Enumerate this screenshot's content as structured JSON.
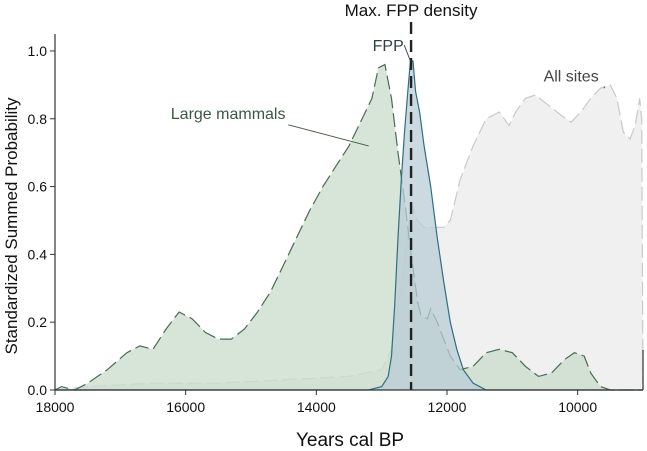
{
  "chart_data": {
    "type": "area",
    "xlabel": "Years cal BP",
    "ylabel": "Standardized Summed Probability",
    "xlim": [
      18000,
      9000
    ],
    "ylim": [
      0,
      1.05
    ],
    "x_reversed": true,
    "xticks": [
      18000,
      16000,
      14000,
      12000,
      10000
    ],
    "xtick_labels": [
      "18000",
      "16000",
      "14000",
      "12000",
      "10000"
    ],
    "yticks": [
      0,
      0.2,
      0.4,
      0.6,
      0.8,
      1.0
    ],
    "ytick_labels": [
      "0.0",
      "0.2",
      "0.4",
      "0.6",
      "0.8",
      "1.0"
    ],
    "grid": false,
    "reference_line": {
      "x": 12550,
      "label": "Max. FPP density"
    },
    "series": [
      {
        "name": "All sites",
        "color": "#c9c9c9",
        "fill": "#ebebeb",
        "line_style": "dashed",
        "points": [
          [
            18000,
            0.0
          ],
          [
            17500,
            0.01
          ],
          [
            16500,
            0.02
          ],
          [
            15500,
            0.02
          ],
          [
            14500,
            0.03
          ],
          [
            13500,
            0.04
          ],
          [
            13000,
            0.06
          ],
          [
            12850,
            0.12
          ],
          [
            12750,
            0.25
          ],
          [
            12650,
            0.38
          ],
          [
            12550,
            0.55
          ],
          [
            12450,
            0.5
          ],
          [
            12350,
            0.48
          ],
          [
            12200,
            0.48
          ],
          [
            12050,
            0.48
          ],
          [
            11950,
            0.5
          ],
          [
            11800,
            0.62
          ],
          [
            11600,
            0.72
          ],
          [
            11400,
            0.8
          ],
          [
            11200,
            0.82
          ],
          [
            11050,
            0.78
          ],
          [
            10950,
            0.82
          ],
          [
            10800,
            0.86
          ],
          [
            10650,
            0.87
          ],
          [
            10450,
            0.84
          ],
          [
            10250,
            0.81
          ],
          [
            10100,
            0.79
          ],
          [
            9950,
            0.82
          ],
          [
            9800,
            0.86
          ],
          [
            9650,
            0.89
          ],
          [
            9500,
            0.9
          ],
          [
            9400,
            0.86
          ],
          [
            9300,
            0.76
          ],
          [
            9200,
            0.74
          ],
          [
            9120,
            0.78
          ],
          [
            9050,
            0.86
          ],
          [
            9020,
            0.8
          ],
          [
            9000,
            0.0
          ]
        ]
      },
      {
        "name": "Large mammals",
        "color": "#4a6a55",
        "fill": "#c9dccb",
        "line_style": "dashed",
        "points": [
          [
            18000,
            0.0
          ],
          [
            17900,
            0.01
          ],
          [
            17700,
            0.0
          ],
          [
            17500,
            0.02
          ],
          [
            17200,
            0.06
          ],
          [
            16900,
            0.11
          ],
          [
            16700,
            0.13
          ],
          [
            16500,
            0.12
          ],
          [
            16300,
            0.18
          ],
          [
            16100,
            0.23
          ],
          [
            15900,
            0.21
          ],
          [
            15700,
            0.17
          ],
          [
            15500,
            0.15
          ],
          [
            15300,
            0.15
          ],
          [
            15100,
            0.18
          ],
          [
            14900,
            0.23
          ],
          [
            14700,
            0.29
          ],
          [
            14500,
            0.37
          ],
          [
            14300,
            0.45
          ],
          [
            14100,
            0.53
          ],
          [
            13900,
            0.6
          ],
          [
            13700,
            0.66
          ],
          [
            13500,
            0.72
          ],
          [
            13300,
            0.8
          ],
          [
            13150,
            0.86
          ],
          [
            13050,
            0.95
          ],
          [
            12950,
            0.96
          ],
          [
            12850,
            0.86
          ],
          [
            12750,
            0.7
          ],
          [
            12650,
            0.56
          ],
          [
            12550,
            0.4
          ],
          [
            12450,
            0.26
          ],
          [
            12400,
            0.22
          ],
          [
            12300,
            0.21
          ],
          [
            12250,
            0.24
          ],
          [
            12150,
            0.2
          ],
          [
            12050,
            0.15
          ],
          [
            11950,
            0.1
          ],
          [
            11800,
            0.06
          ],
          [
            11600,
            0.07
          ],
          [
            11400,
            0.11
          ],
          [
            11200,
            0.12
          ],
          [
            11000,
            0.11
          ],
          [
            10800,
            0.07
          ],
          [
            10600,
            0.04
          ],
          [
            10400,
            0.05
          ],
          [
            10200,
            0.09
          ],
          [
            10050,
            0.11
          ],
          [
            9900,
            0.1
          ],
          [
            9800,
            0.05
          ],
          [
            9650,
            0.01
          ],
          [
            9500,
            0.0
          ],
          [
            9000,
            0.0
          ]
        ]
      },
      {
        "name": "FPP",
        "color": "#2f6f80",
        "fill": "#b9ccd6",
        "line_style": "solid",
        "points": [
          [
            18000,
            0.0
          ],
          [
            13200,
            0.0
          ],
          [
            13000,
            0.01
          ],
          [
            12900,
            0.04
          ],
          [
            12850,
            0.1
          ],
          [
            12800,
            0.25
          ],
          [
            12750,
            0.45
          ],
          [
            12700,
            0.62
          ],
          [
            12650,
            0.76
          ],
          [
            12600,
            0.88
          ],
          [
            12560,
            0.97
          ],
          [
            12520,
            0.97
          ],
          [
            12480,
            0.88
          ],
          [
            12420,
            0.82
          ],
          [
            12350,
            0.72
          ],
          [
            12250,
            0.6
          ],
          [
            12150,
            0.45
          ],
          [
            12050,
            0.32
          ],
          [
            11950,
            0.2
          ],
          [
            11850,
            0.12
          ],
          [
            11750,
            0.06
          ],
          [
            11600,
            0.02
          ],
          [
            11400,
            0.0
          ],
          [
            9000,
            0.0
          ]
        ]
      }
    ],
    "annotations": [
      {
        "text": "All sites",
        "x": 10100,
        "y": 0.91,
        "arrow_to": [
          9600,
          0.89
        ],
        "color": "#444444"
      },
      {
        "text": "Large mammals",
        "x": 15350,
        "y": 0.8,
        "arrow_to": [
          13200,
          0.72
        ],
        "color": "#3a5a40"
      },
      {
        "text": "FPP",
        "x": 12900,
        "y": 1.0,
        "arrow_to": [
          12560,
          0.97
        ],
        "color": "#2f3f48"
      }
    ]
  }
}
